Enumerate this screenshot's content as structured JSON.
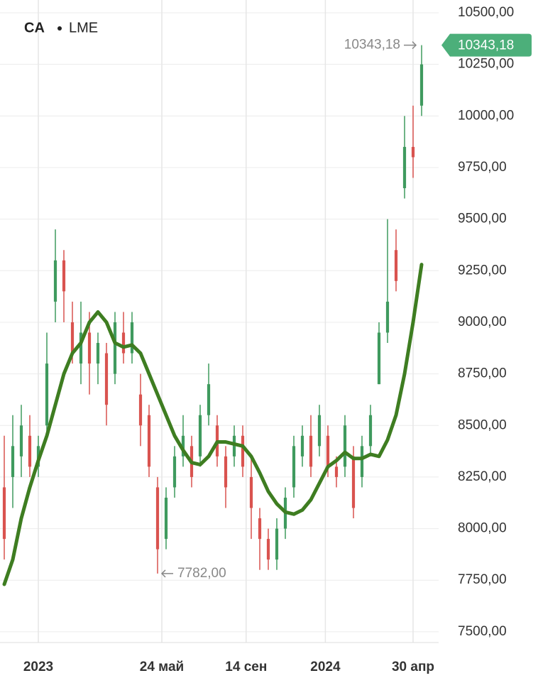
{
  "chart_data": {
    "type": "candlestick",
    "symbol": "CA",
    "exchange": "LME",
    "x": [
      0,
      1,
      2,
      3,
      4,
      5,
      6,
      7,
      8,
      9,
      10,
      11,
      12,
      13,
      14,
      15,
      16,
      17,
      18,
      19,
      20,
      21,
      22,
      23,
      24,
      25,
      26,
      27,
      28,
      29,
      30,
      31,
      32,
      33,
      34,
      35,
      36,
      37,
      38,
      39,
      40,
      41,
      42,
      43,
      44,
      45,
      46,
      47,
      48,
      49
    ],
    "open": [
      8200,
      8250,
      8350,
      8450,
      8300,
      8500,
      9100,
      9300,
      9000,
      8800,
      8950,
      8800,
      8850,
      8750,
      8950,
      8850,
      8650,
      8550,
      8200,
      7950,
      8200,
      8350,
      8400,
      8350,
      8550,
      8500,
      8350,
      8350,
      8450,
      8250,
      8050,
      7950,
      7850,
      8000,
      8200,
      8350,
      8450,
      8400,
      8450,
      8300,
      8300,
      8350,
      8250,
      8400,
      8700,
      8950,
      9350,
      9650,
      9850,
      10050
    ],
    "close": [
      7950,
      8400,
      8500,
      8300,
      8400,
      8800,
      9300,
      9150,
      8850,
      8950,
      8800,
      8900,
      8600,
      9000,
      8850,
      9000,
      8500,
      8300,
      7900,
      8150,
      8350,
      8450,
      8250,
      8550,
      8700,
      8350,
      8200,
      8450,
      8300,
      8100,
      7950,
      7850,
      8000,
      8150,
      8400,
      8450,
      8300,
      8550,
      8300,
      8250,
      8500,
      8100,
      8400,
      8550,
      8950,
      9100,
      9200,
      9850,
      9800,
      10250
    ],
    "high": [
      8450,
      8550,
      8600,
      8550,
      8450,
      8950,
      9450,
      9350,
      9100,
      9100,
      9050,
      8950,
      8900,
      9050,
      9050,
      9050,
      8750,
      8600,
      8250,
      8200,
      8400,
      8550,
      8450,
      8600,
      8800,
      8550,
      8400,
      8500,
      8500,
      8350,
      8100,
      8000,
      8050,
      8200,
      8450,
      8500,
      8550,
      8600,
      8500,
      8350,
      8550,
      8400,
      8450,
      8600,
      9000,
      9500,
      9450,
      10000,
      10050,
      10343.18
    ],
    "low": [
      7850,
      8100,
      8250,
      8250,
      8250,
      8450,
      9000,
      9000,
      8800,
      8700,
      8650,
      8700,
      8500,
      8700,
      8800,
      8800,
      8400,
      8250,
      7782,
      7900,
      8150,
      8300,
      8200,
      8300,
      8500,
      8300,
      8100,
      8300,
      8250,
      7950,
      7800,
      7800,
      7800,
      7950,
      8150,
      8300,
      8250,
      8350,
      8250,
      8200,
      8250,
      8050,
      8200,
      8350,
      8700,
      8900,
      9150,
      9600,
      9700,
      10000
    ],
    "up_color": "#3f9a5e",
    "down_color": "#d9534f",
    "ma": {
      "color": "#3e7d21",
      "values": [
        7730,
        7850,
        8050,
        8200,
        8330,
        8450,
        8600,
        8750,
        8850,
        8900,
        9000,
        9050,
        9000,
        8900,
        8880,
        8890,
        8850,
        8750,
        8650,
        8550,
        8450,
        8380,
        8320,
        8310,
        8350,
        8420,
        8420,
        8410,
        8400,
        8350,
        8270,
        8180,
        8120,
        8080,
        8070,
        8090,
        8140,
        8220,
        8300,
        8330,
        8370,
        8340,
        8340,
        8360,
        8350,
        8430,
        8550,
        8750,
        9000,
        9280
      ]
    },
    "xlim": [
      -0.5,
      51
    ],
    "ylim": [
      7448,
      10562
    ],
    "xticks": [
      {
        "value": 4,
        "label": "2023"
      },
      {
        "value": 18.5,
        "label": "24 май"
      },
      {
        "value": 28.4,
        "label": "14 сен"
      },
      {
        "value": 37.7,
        "label": "2024"
      },
      {
        "value": 48,
        "label": "30 апр"
      }
    ],
    "yticks": [
      {
        "value": 7500,
        "label": "7500,00"
      },
      {
        "value": 7750,
        "label": "7750,00"
      },
      {
        "value": 8000,
        "label": "8000,00"
      },
      {
        "value": 8250,
        "label": "8250,00"
      },
      {
        "value": 8500,
        "label": "8500,00"
      },
      {
        "value": 8750,
        "label": "8750,00"
      },
      {
        "value": 9000,
        "label": "9000,00"
      },
      {
        "value": 9250,
        "label": "9250,00"
      },
      {
        "value": 9500,
        "label": "9500,00"
      },
      {
        "value": 9750,
        "label": "9750,00"
      },
      {
        "value": 10000,
        "label": "10000,00"
      },
      {
        "value": 10250,
        "label": "10250,00"
      },
      {
        "value": 10500,
        "label": "10500,00"
      }
    ],
    "grid": true,
    "last_price": {
      "value": 10343.18,
      "label": "10343,18",
      "x": 49,
      "color": "#4caf7a"
    },
    "min_price": {
      "value": 7782,
      "label": "7782,00",
      "x": 18
    }
  }
}
